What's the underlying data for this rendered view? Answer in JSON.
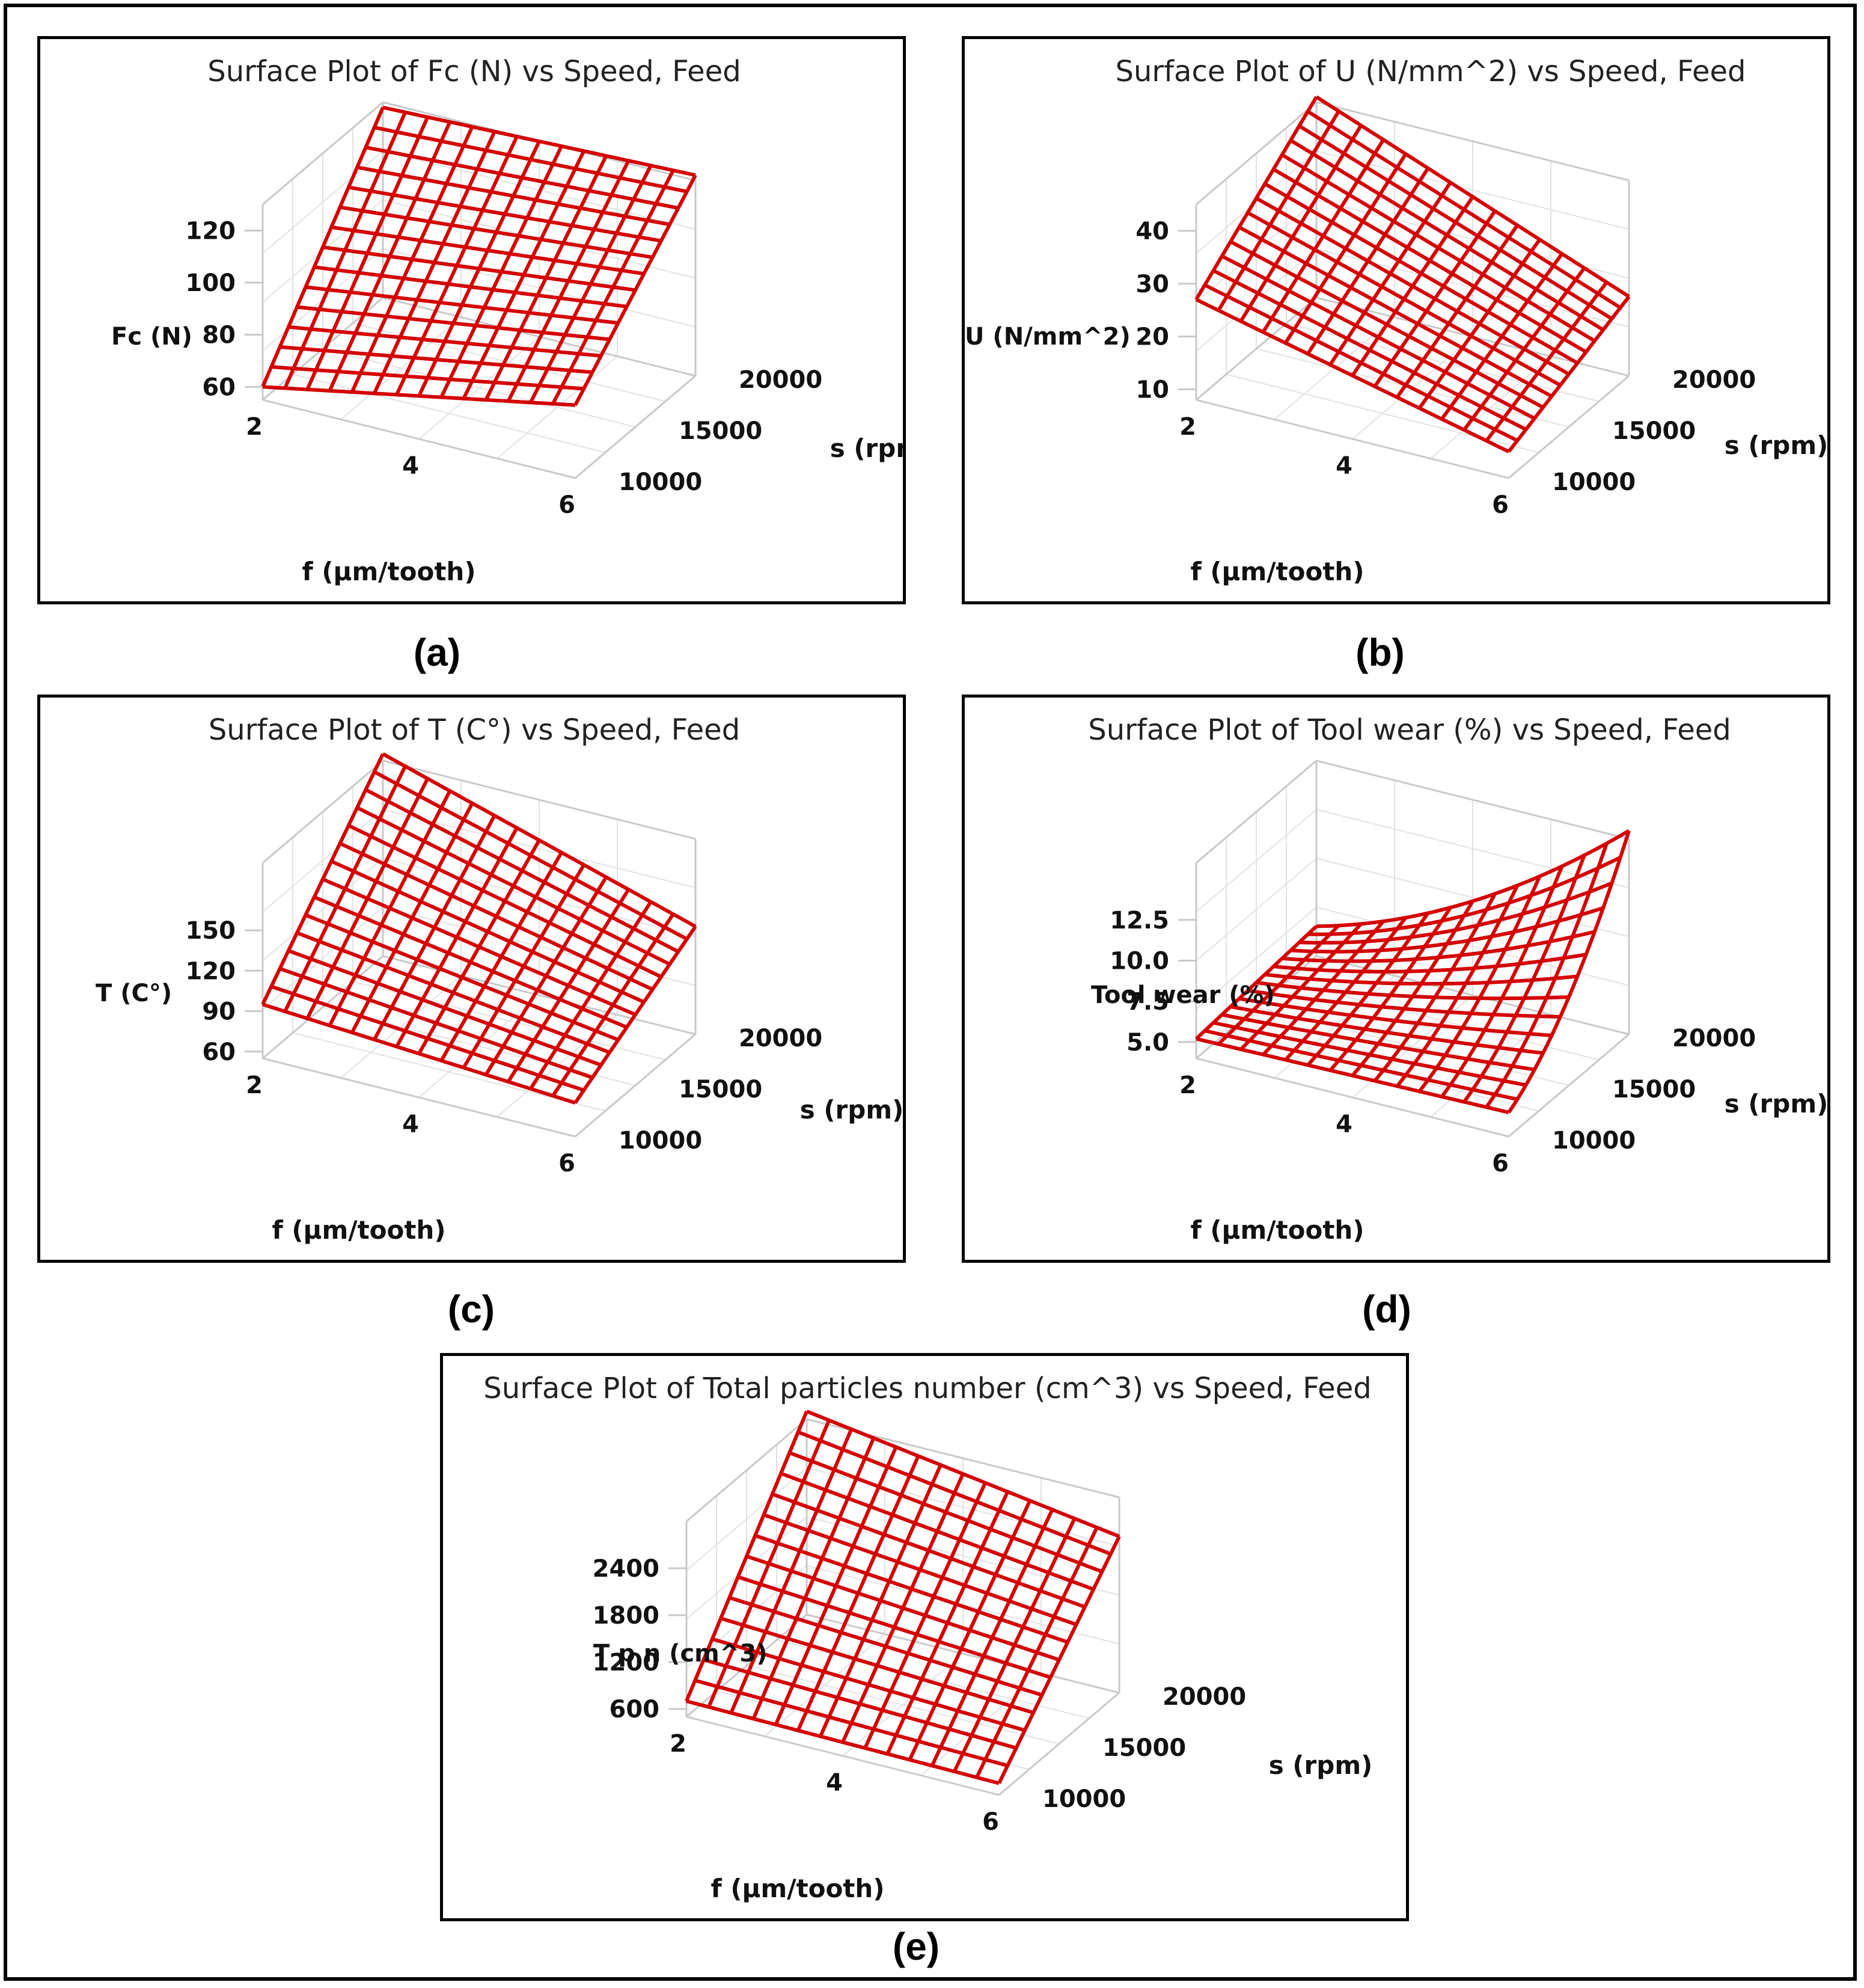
{
  "colors": {
    "surface": "#d40000",
    "box": "#c8c8c8",
    "grid": "#e2e2e2",
    "text": "#111111",
    "frame": "#000000"
  },
  "chart_data": [
    {
      "panel": "a",
      "type": "surface",
      "caption": "(a)",
      "title": "Surface Plot of Fc (N) vs Speed, Feed",
      "xlabel": "f (µm/tooth)",
      "ylabel": "s (rpm)",
      "zlabel": "Fc (N)",
      "x_ticks": [
        "2",
        "4",
        "6"
      ],
      "y_ticks": [
        "10000",
        "15000",
        "20000"
      ],
      "z_ticks": [
        "60",
        "80",
        "100",
        "120"
      ],
      "xlim": [
        2,
        6
      ],
      "ylim": [
        10000,
        20000
      ],
      "zlim": [
        55,
        130
      ],
      "corners": {
        "f_min_s_min": 60,
        "f_max_s_min": 83,
        "f_min_s_max": 128,
        "f_max_s_max": 132
      }
    },
    {
      "panel": "b",
      "type": "surface",
      "caption": "(b)",
      "title": "Surface Plot of U (N/mm^2) vs Speed, Feed",
      "xlabel": "f (µm/tooth)",
      "ylabel": "s (rpm)",
      "zlabel": "U (N/mm^2)",
      "x_ticks": [
        "2",
        "4",
        "6"
      ],
      "y_ticks": [
        "10000",
        "15000",
        "20000"
      ],
      "z_ticks": [
        "10",
        "20",
        "30",
        "40"
      ],
      "xlim": [
        2,
        6
      ],
      "ylim": [
        10000,
        20000
      ],
      "zlim": [
        8,
        45
      ],
      "corners": {
        "f_min_s_min": 27,
        "f_max_s_min": 13,
        "f_min_s_max": 46,
        "f_max_s_max": 23
      }
    },
    {
      "panel": "c",
      "type": "surface",
      "caption": "(c)",
      "title": "Surface Plot of T (C°) vs Speed, Feed",
      "xlabel": "f (µm/tooth)",
      "ylabel": "s (rpm)",
      "zlabel": "T (C°)",
      "x_ticks": [
        "2",
        "4",
        "6"
      ],
      "y_ticks": [
        "10000",
        "15000",
        "20000"
      ],
      "z_ticks": [
        "60",
        "90",
        "120",
        "150"
      ],
      "xlim": [
        2,
        6
      ],
      "ylim": [
        10000,
        20000
      ],
      "zlim": [
        55,
        200
      ],
      "corners": {
        "f_min_s_min": 95,
        "f_max_s_min": 80,
        "f_min_s_max": 205,
        "f_max_s_max": 135
      }
    },
    {
      "panel": "d",
      "type": "surface",
      "caption": "(d)",
      "title": "Surface Plot of Tool wear (%) vs Speed, Feed",
      "xlabel": "f (µm/tooth)",
      "ylabel": "s (rpm)",
      "zlabel": "Tool wear (%)",
      "x_ticks": [
        "2",
        "4",
        "6"
      ],
      "y_ticks": [
        "10000",
        "15000",
        "20000"
      ],
      "z_ticks": [
        "5.0",
        "7.5",
        "10.0",
        "12.5"
      ],
      "xlim": [
        2,
        6
      ],
      "ylim": [
        10000,
        20000
      ],
      "zlim": [
        4,
        16
      ],
      "corners": {
        "f_min_s_min": 5.2,
        "f_max_s_min": 6.0,
        "f_min_s_max": 7.0,
        "f_max_s_max": 16.5
      }
    },
    {
      "panel": "e",
      "type": "surface",
      "caption": "(e)",
      "title": "Surface Plot of Total particles number (cm^3) vs Speed, Feed",
      "xlabel": "f (µm/tooth)",
      "ylabel": "s (rpm)",
      "zlabel": "T p n (cm^3)",
      "x_ticks": [
        "2",
        "4",
        "6"
      ],
      "y_ticks": [
        "10000",
        "15000",
        "20000"
      ],
      "z_ticks": [
        "600",
        "1200",
        "1800",
        "2400"
      ],
      "xlim": [
        2,
        6
      ],
      "ylim": [
        10000,
        20000
      ],
      "zlim": [
        500,
        3000
      ],
      "corners": {
        "f_min_s_min": 700,
        "f_max_s_min": 650,
        "f_min_s_max": 3100,
        "f_max_s_max": 2500
      }
    }
  ]
}
